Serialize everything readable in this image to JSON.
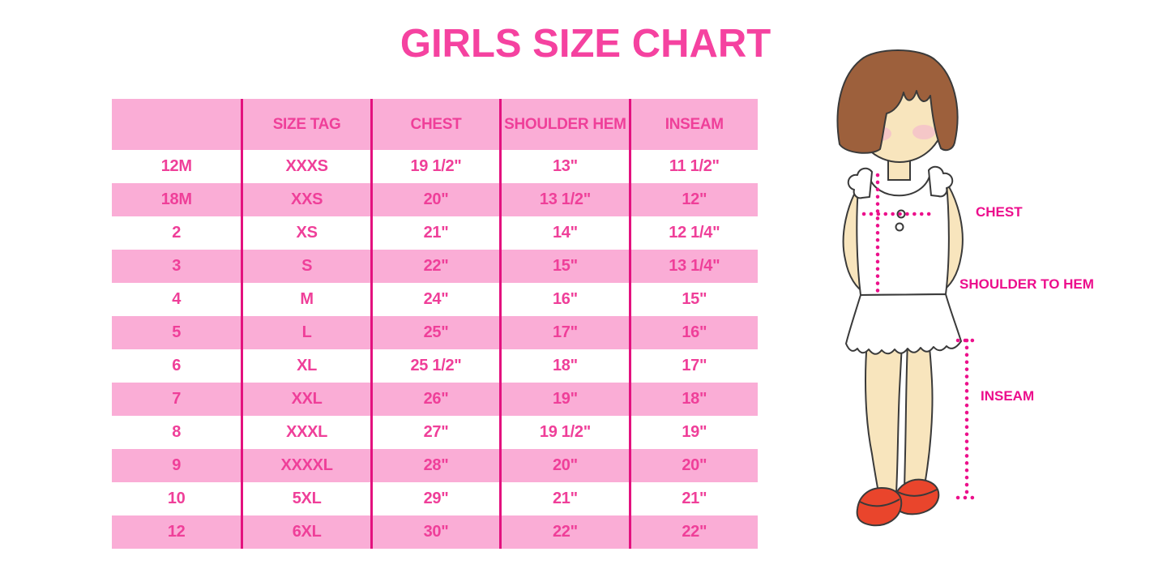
{
  "title": "GIRLS SIZE CHART",
  "colors": {
    "title_pink": "#F542A0",
    "row_pink": "#FAADD6",
    "divider_magenta": "#E3117E",
    "cell_text_pink": "#EF3F99",
    "label_magenta": "#EC0D8C",
    "hair_brown": "#9D603C",
    "skin": "#F8E5BD",
    "blush": "#F4C2CA",
    "shoe_red": "#E9452C",
    "outline": "#3a3a3a"
  },
  "chart_data": {
    "type": "table",
    "title": "GIRLS SIZE CHART",
    "columns": [
      "",
      "SIZE TAG",
      "CHEST",
      "SHOULDER HEM",
      "INSEAM"
    ],
    "rows": [
      [
        "12M",
        "XXXS",
        "19 1/2\"",
        "13\"",
        "11 1/2\""
      ],
      [
        "18M",
        "XXS",
        "20\"",
        "13 1/2\"",
        "12\""
      ],
      [
        "2",
        "XS",
        "21\"",
        "14\"",
        "12 1/4\""
      ],
      [
        "3",
        "S",
        "22\"",
        "15\"",
        "13 1/4\""
      ],
      [
        "4",
        "M",
        "24\"",
        "16\"",
        "15\""
      ],
      [
        "5",
        "L",
        "25\"",
        "17\"",
        "16\""
      ],
      [
        "6",
        "XL",
        "25 1/2\"",
        "18\"",
        "17\""
      ],
      [
        "7",
        "XXL",
        "26\"",
        "19\"",
        "18\""
      ],
      [
        "8",
        "XXXL",
        "27\"",
        "19 1/2\"",
        "19\""
      ],
      [
        "9",
        "XXXXL",
        "28\"",
        "20\"",
        "20\""
      ],
      [
        "10",
        "5XL",
        "29\"",
        "21\"",
        "21\""
      ],
      [
        "12",
        "6XL",
        "30\"",
        "22\"",
        "22\""
      ]
    ],
    "layout": {
      "stripe_pattern": "header pink, then data rows alternate white/pink starting with white",
      "grid": "vertical magenta dividers only, no horizontal lines, no outer border"
    }
  },
  "illustration": {
    "description": "cartoon girl, brown bob hair, white sleeveless ruffled top and skirt, red mary-jane shoes, pink dotted measurement guides",
    "labels": {
      "chest": "CHEST",
      "shoulder_to_hem": "SHOULDER TO HEM",
      "inseam": "INSEAM"
    }
  }
}
